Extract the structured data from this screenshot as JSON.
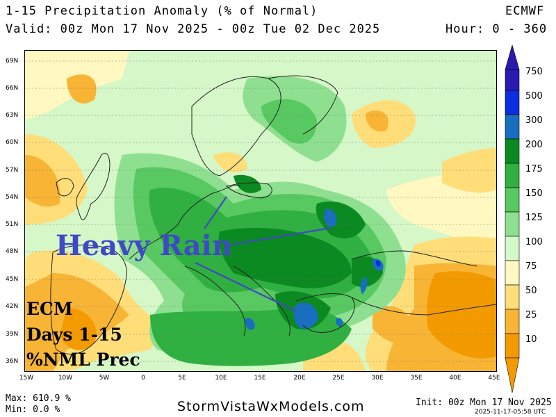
{
  "header": {
    "title": "1-15 Precipitation Anomaly (% of Normal)",
    "model": "ECMWF",
    "valid": "Valid: 00z Mon 17 Nov 2025 - 00z Tue 02 Dec 2025",
    "hours": "Hour: 0 - 360"
  },
  "axes": {
    "latitudes": [
      "69N",
      "66N",
      "63N",
      "60N",
      "57N",
      "54N",
      "51N",
      "48N",
      "45N",
      "42N",
      "39N",
      "36N"
    ],
    "longitudes": [
      "15W",
      "10W",
      "5W",
      "0",
      "5E",
      "10E",
      "15E",
      "20E",
      "25E",
      "30E",
      "35E",
      "40E",
      "45E"
    ]
  },
  "colorbar": {
    "levels": [
      "750",
      "500",
      "300",
      "200",
      "175",
      "150",
      "125",
      "100",
      "75",
      "50",
      "25",
      "10"
    ],
    "colors": {
      "c750": "#2a1ab0",
      "c500": "#0a2ee0",
      "c300": "#1a6ec0",
      "c200": "#0a8a20",
      "c175": "#2fb040",
      "c150": "#58c860",
      "c125": "#8ee090",
      "c100": "#d6f7c8",
      "c75": "#fff8c0",
      "c50": "#ffde7a",
      "c25": "#f8b434",
      "c10": "#f29a00"
    }
  },
  "overlay": {
    "heavy_rain": "Heavy Rain",
    "ecm_line1": "ECM",
    "ecm_line2": "Days 1-15",
    "ecm_line3": "%NML Prec"
  },
  "footer": {
    "max": "Max: 610.9 %",
    "min": "Min: 0.0 %",
    "site": "StormVistaWxModels.com",
    "init": "Init: 00z Mon 17 Nov 2025",
    "stamp": "2025-11-17-05:58 UTC"
  }
}
